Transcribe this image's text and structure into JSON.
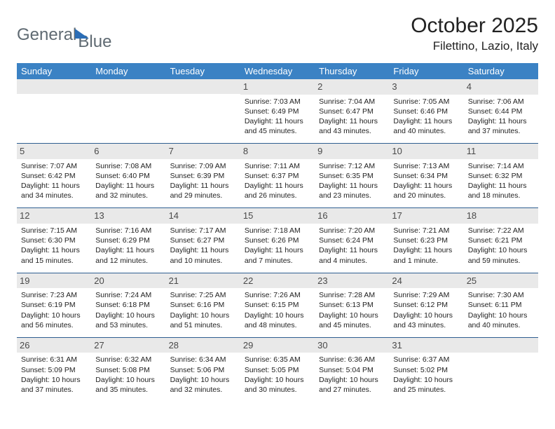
{
  "brand": {
    "part1": "General",
    "part2": "Blue"
  },
  "title": "October 2025",
  "location": "Filettino, Lazio, Italy",
  "colors": {
    "header_bg": "#3b82c4",
    "header_text": "#ffffff",
    "row_border": "#2f5e91",
    "daynum_bg": "#e9e9e9",
    "logo_text": "#5f6a72",
    "logo_icon": "#2b6db6"
  },
  "weekdays": [
    "Sunday",
    "Monday",
    "Tuesday",
    "Wednesday",
    "Thursday",
    "Friday",
    "Saturday"
  ],
  "weeks": [
    [
      {
        "empty": true
      },
      {
        "empty": true
      },
      {
        "empty": true
      },
      {
        "day": "1",
        "sunrise": "Sunrise: 7:03 AM",
        "sunset": "Sunset: 6:49 PM",
        "daylight": "Daylight: 11 hours and 45 minutes."
      },
      {
        "day": "2",
        "sunrise": "Sunrise: 7:04 AM",
        "sunset": "Sunset: 6:47 PM",
        "daylight": "Daylight: 11 hours and 43 minutes."
      },
      {
        "day": "3",
        "sunrise": "Sunrise: 7:05 AM",
        "sunset": "Sunset: 6:46 PM",
        "daylight": "Daylight: 11 hours and 40 minutes."
      },
      {
        "day": "4",
        "sunrise": "Sunrise: 7:06 AM",
        "sunset": "Sunset: 6:44 PM",
        "daylight": "Daylight: 11 hours and 37 minutes."
      }
    ],
    [
      {
        "day": "5",
        "sunrise": "Sunrise: 7:07 AM",
        "sunset": "Sunset: 6:42 PM",
        "daylight": "Daylight: 11 hours and 34 minutes."
      },
      {
        "day": "6",
        "sunrise": "Sunrise: 7:08 AM",
        "sunset": "Sunset: 6:40 PM",
        "daylight": "Daylight: 11 hours and 32 minutes."
      },
      {
        "day": "7",
        "sunrise": "Sunrise: 7:09 AM",
        "sunset": "Sunset: 6:39 PM",
        "daylight": "Daylight: 11 hours and 29 minutes."
      },
      {
        "day": "8",
        "sunrise": "Sunrise: 7:11 AM",
        "sunset": "Sunset: 6:37 PM",
        "daylight": "Daylight: 11 hours and 26 minutes."
      },
      {
        "day": "9",
        "sunrise": "Sunrise: 7:12 AM",
        "sunset": "Sunset: 6:35 PM",
        "daylight": "Daylight: 11 hours and 23 minutes."
      },
      {
        "day": "10",
        "sunrise": "Sunrise: 7:13 AM",
        "sunset": "Sunset: 6:34 PM",
        "daylight": "Daylight: 11 hours and 20 minutes."
      },
      {
        "day": "11",
        "sunrise": "Sunrise: 7:14 AM",
        "sunset": "Sunset: 6:32 PM",
        "daylight": "Daylight: 11 hours and 18 minutes."
      }
    ],
    [
      {
        "day": "12",
        "sunrise": "Sunrise: 7:15 AM",
        "sunset": "Sunset: 6:30 PM",
        "daylight": "Daylight: 11 hours and 15 minutes."
      },
      {
        "day": "13",
        "sunrise": "Sunrise: 7:16 AM",
        "sunset": "Sunset: 6:29 PM",
        "daylight": "Daylight: 11 hours and 12 minutes."
      },
      {
        "day": "14",
        "sunrise": "Sunrise: 7:17 AM",
        "sunset": "Sunset: 6:27 PM",
        "daylight": "Daylight: 11 hours and 10 minutes."
      },
      {
        "day": "15",
        "sunrise": "Sunrise: 7:18 AM",
        "sunset": "Sunset: 6:26 PM",
        "daylight": "Daylight: 11 hours and 7 minutes."
      },
      {
        "day": "16",
        "sunrise": "Sunrise: 7:20 AM",
        "sunset": "Sunset: 6:24 PM",
        "daylight": "Daylight: 11 hours and 4 minutes."
      },
      {
        "day": "17",
        "sunrise": "Sunrise: 7:21 AM",
        "sunset": "Sunset: 6:23 PM",
        "daylight": "Daylight: 11 hours and 1 minute."
      },
      {
        "day": "18",
        "sunrise": "Sunrise: 7:22 AM",
        "sunset": "Sunset: 6:21 PM",
        "daylight": "Daylight: 10 hours and 59 minutes."
      }
    ],
    [
      {
        "day": "19",
        "sunrise": "Sunrise: 7:23 AM",
        "sunset": "Sunset: 6:19 PM",
        "daylight": "Daylight: 10 hours and 56 minutes."
      },
      {
        "day": "20",
        "sunrise": "Sunrise: 7:24 AM",
        "sunset": "Sunset: 6:18 PM",
        "daylight": "Daylight: 10 hours and 53 minutes."
      },
      {
        "day": "21",
        "sunrise": "Sunrise: 7:25 AM",
        "sunset": "Sunset: 6:16 PM",
        "daylight": "Daylight: 10 hours and 51 minutes."
      },
      {
        "day": "22",
        "sunrise": "Sunrise: 7:26 AM",
        "sunset": "Sunset: 6:15 PM",
        "daylight": "Daylight: 10 hours and 48 minutes."
      },
      {
        "day": "23",
        "sunrise": "Sunrise: 7:28 AM",
        "sunset": "Sunset: 6:13 PM",
        "daylight": "Daylight: 10 hours and 45 minutes."
      },
      {
        "day": "24",
        "sunrise": "Sunrise: 7:29 AM",
        "sunset": "Sunset: 6:12 PM",
        "daylight": "Daylight: 10 hours and 43 minutes."
      },
      {
        "day": "25",
        "sunrise": "Sunrise: 7:30 AM",
        "sunset": "Sunset: 6:11 PM",
        "daylight": "Daylight: 10 hours and 40 minutes."
      }
    ],
    [
      {
        "day": "26",
        "sunrise": "Sunrise: 6:31 AM",
        "sunset": "Sunset: 5:09 PM",
        "daylight": "Daylight: 10 hours and 37 minutes."
      },
      {
        "day": "27",
        "sunrise": "Sunrise: 6:32 AM",
        "sunset": "Sunset: 5:08 PM",
        "daylight": "Daylight: 10 hours and 35 minutes."
      },
      {
        "day": "28",
        "sunrise": "Sunrise: 6:34 AM",
        "sunset": "Sunset: 5:06 PM",
        "daylight": "Daylight: 10 hours and 32 minutes."
      },
      {
        "day": "29",
        "sunrise": "Sunrise: 6:35 AM",
        "sunset": "Sunset: 5:05 PM",
        "daylight": "Daylight: 10 hours and 30 minutes."
      },
      {
        "day": "30",
        "sunrise": "Sunrise: 6:36 AM",
        "sunset": "Sunset: 5:04 PM",
        "daylight": "Daylight: 10 hours and 27 minutes."
      },
      {
        "day": "31",
        "sunrise": "Sunrise: 6:37 AM",
        "sunset": "Sunset: 5:02 PM",
        "daylight": "Daylight: 10 hours and 25 minutes."
      },
      {
        "empty": true
      }
    ]
  ]
}
